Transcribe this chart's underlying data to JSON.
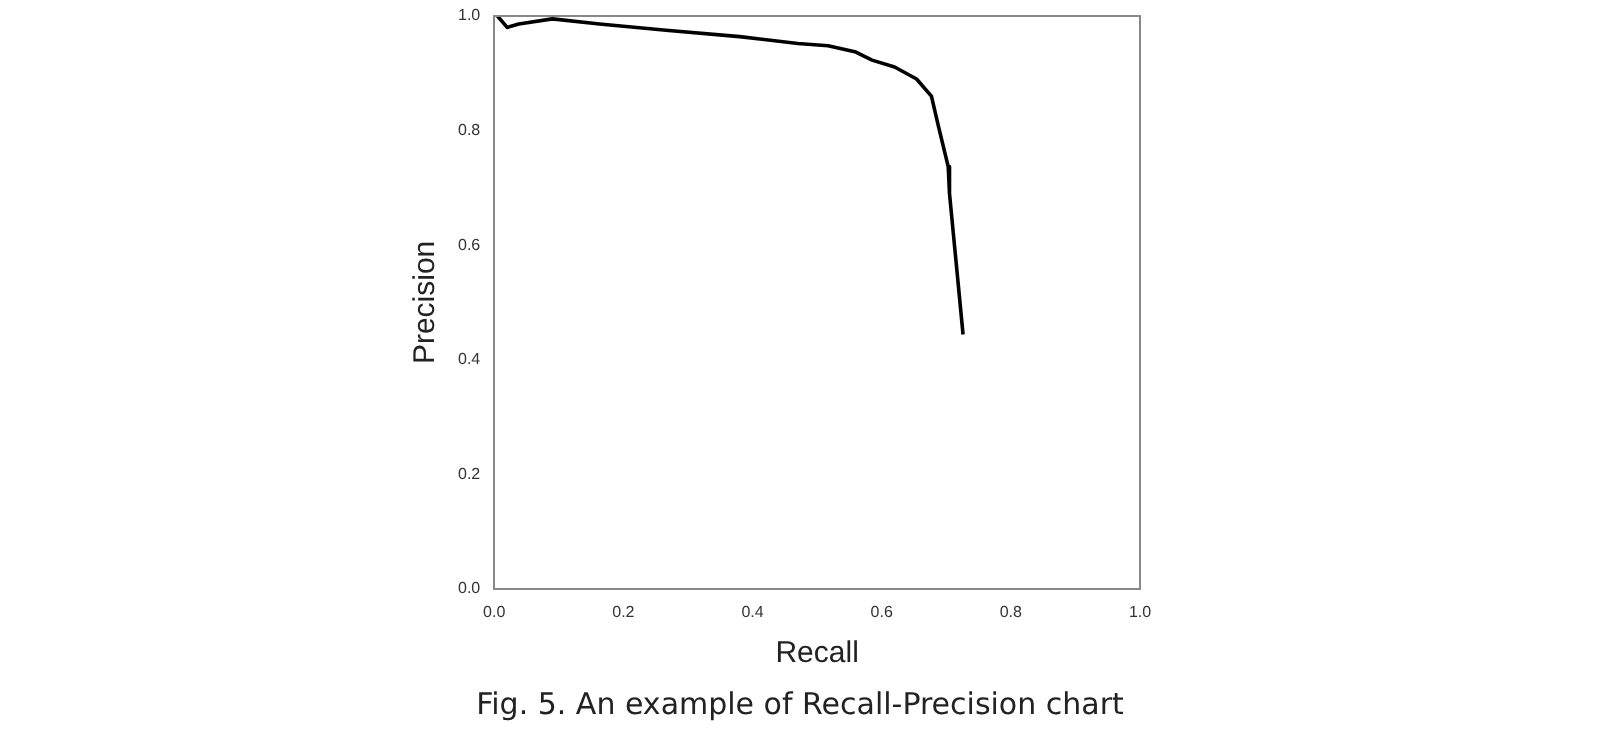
{
  "chart_data": {
    "type": "line",
    "xlabel": "Recall",
    "ylabel": "Precision",
    "annotations": [
      "Fig. 5. An example of Recall-Precision chart"
    ],
    "x": [
      0.005,
      0.02,
      0.038,
      0.09,
      0.163,
      0.266,
      0.38,
      0.47,
      0.517,
      0.56,
      0.585,
      0.62,
      0.654,
      0.677,
      0.688,
      0.703,
      0.705,
      0.726
    ],
    "series": [
      {
        "color": "#000000",
        "values": [
          1.0,
          0.98,
          0.986,
          0.995,
          0.986,
          0.975,
          0.964,
          0.952,
          0.948,
          0.937,
          0.923,
          0.911,
          0.89,
          0.86,
          0.807,
          0.737,
          0.69,
          0.444
        ]
      }
    ],
    "xlim": [
      0,
      1
    ],
    "ylim": [
      0,
      1
    ],
    "xticks": [
      {
        "value": 0,
        "label": "0.0"
      },
      0.2,
      0.4,
      0.6,
      0.8,
      {
        "value": 1,
        "label": "1.0"
      }
    ],
    "yticks": [
      {
        "value": 0,
        "label": "0.0"
      },
      0.2,
      0.4,
      0.6,
      0.8,
      {
        "value": 1,
        "label": "1.0"
      }
    ],
    "grid": false,
    "legend": false,
    "marker": "none",
    "line_style": "solid"
  }
}
